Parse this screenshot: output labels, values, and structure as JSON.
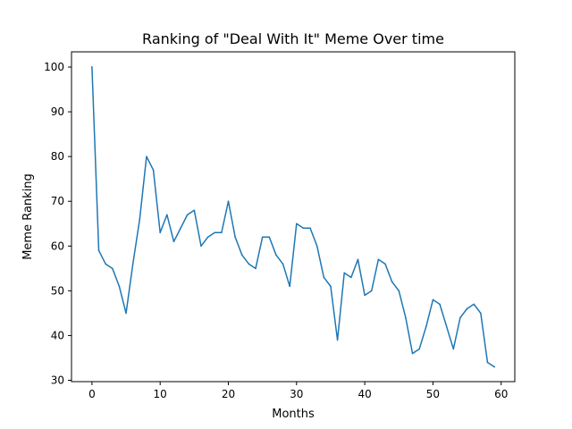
{
  "chart_data": {
    "type": "line",
    "title": "Ranking of \"Deal With It\" Meme Over time",
    "xlabel": "Months",
    "ylabel": "Meme Ranking",
    "xlim": [
      -3,
      62
    ],
    "ylim": [
      29.7,
      103.4
    ],
    "xticks": [
      0,
      10,
      20,
      30,
      40,
      50,
      60
    ],
    "yticks": [
      30,
      40,
      50,
      60,
      70,
      80,
      90,
      100
    ],
    "grid": false,
    "legend": "none",
    "series": [
      {
        "color": "#1f77b4",
        "x": [
          0,
          1,
          2,
          3,
          4,
          5,
          6,
          7,
          8,
          9,
          10,
          11,
          12,
          13,
          14,
          15,
          16,
          17,
          18,
          19,
          20,
          21,
          22,
          23,
          24,
          25,
          26,
          27,
          28,
          29,
          30,
          31,
          32,
          33,
          34,
          35,
          36,
          37,
          38,
          39,
          40,
          41,
          42,
          43,
          44,
          45,
          46,
          47,
          48,
          49,
          50,
          51,
          52,
          53,
          54,
          55,
          56,
          57,
          58,
          59
        ],
        "y": [
          100,
          59,
          56,
          55,
          51,
          45,
          56,
          66,
          80,
          77,
          63,
          67,
          61,
          64,
          67,
          68,
          60,
          62,
          63,
          63,
          70,
          62,
          58,
          56,
          55,
          62,
          62,
          58,
          56,
          51,
          65,
          64,
          64,
          60,
          53,
          51,
          39,
          54,
          53,
          57,
          49,
          50,
          57,
          56,
          52,
          50,
          44,
          36,
          37,
          42,
          48,
          47,
          42,
          37,
          44,
          46,
          47,
          45,
          34,
          33
        ]
      }
    ]
  }
}
